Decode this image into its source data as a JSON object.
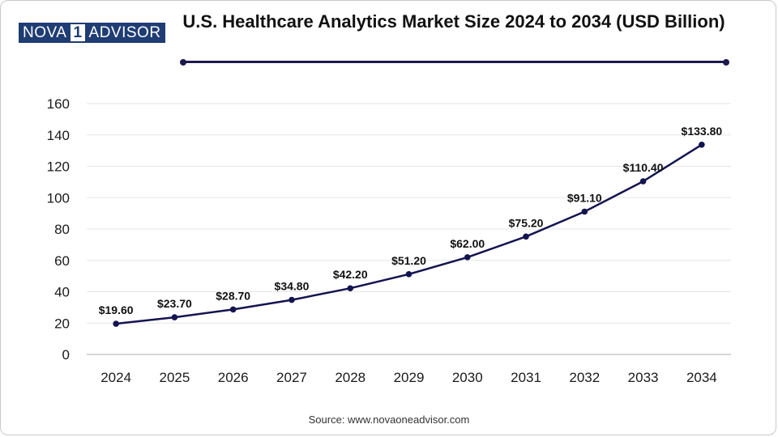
{
  "brand": {
    "logo_left": "NOVA",
    "logo_mark": "1",
    "logo_right": "ADVISOR"
  },
  "colors": {
    "line": "#141450",
    "grid": "#e6e6e6",
    "axis": "#c8c8c8",
    "text": "#1a1a1a"
  },
  "source": "Source: www.novaoneadvisor.com",
  "chart_data": {
    "type": "line",
    "title": "U.S. Healthcare Analytics Market Size 2024 to 2034 (USD Billion)",
    "xlabel": "",
    "ylabel": "",
    "categories": [
      "2024",
      "2025",
      "2026",
      "2027",
      "2028",
      "2029",
      "2030",
      "2031",
      "2032",
      "2033",
      "2034"
    ],
    "series": [
      {
        "name": "Market Size (USD Billion)",
        "values": [
          19.6,
          23.7,
          28.7,
          34.8,
          42.2,
          51.2,
          62.0,
          75.2,
          91.1,
          110.4,
          133.8
        ],
        "labels": [
          "$19.60",
          "$23.70",
          "$28.70",
          "$34.80",
          "$42.20",
          "$51.20",
          "$62.00",
          "$75.20",
          "$91.10",
          "$110.40",
          "$133.80"
        ]
      }
    ],
    "ylim": [
      0,
      160
    ],
    "yticks": [
      0,
      20,
      40,
      60,
      80,
      100,
      120,
      140,
      160
    ],
    "grid": true,
    "legend": "none"
  }
}
